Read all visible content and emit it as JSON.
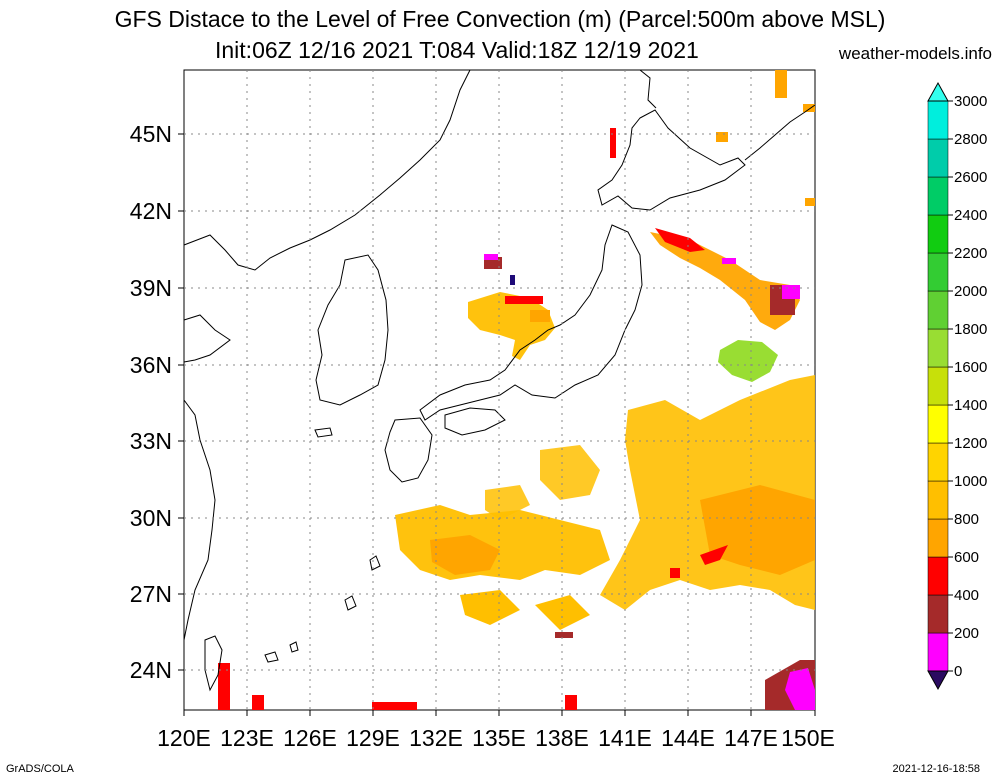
{
  "title": {
    "line1": "GFS Distace to the Level of Free Convection (m) (Parcel:500m above MSL)",
    "line2": "Init:06Z 12/16 2021 T:084 Valid:18Z 12/19 2021",
    "site": "weather-models.info"
  },
  "footer": {
    "left": "GrADS/COLA",
    "right": "2021-12-16-18:58"
  },
  "map": {
    "lon_range": [
      120,
      150
    ],
    "lat_range": [
      22.5,
      47.5
    ],
    "lon_ticks": [
      "120E",
      "123E",
      "126E",
      "129E",
      "132E",
      "135E",
      "138E",
      "141E",
      "144E",
      "147E",
      "150E"
    ],
    "lat_ticks": [
      "24N",
      "27N",
      "30N",
      "33N",
      "36N",
      "39N",
      "42N",
      "45N"
    ],
    "grid": true
  },
  "colorbar": {
    "labels": [
      "0",
      "200",
      "400",
      "600",
      "800",
      "1000",
      "1200",
      "1400",
      "1600",
      "1800",
      "2000",
      "2200",
      "2400",
      "2600",
      "2800",
      "3000"
    ],
    "colors": [
      "#1e0a78",
      "#ff00ff",
      "#a52a2a",
      "#ff0000",
      "#ffa500",
      "#ffbf00",
      "#ffd400",
      "#ffff00",
      "#c7e00a",
      "#99dd33",
      "#60d033",
      "#33cc33",
      "#11cc11",
      "#00cc66",
      "#00ccaa",
      "#00eedd"
    ],
    "low_arrow_color": "#2a0a60",
    "high_arrow_color": "#33ffee"
  }
}
